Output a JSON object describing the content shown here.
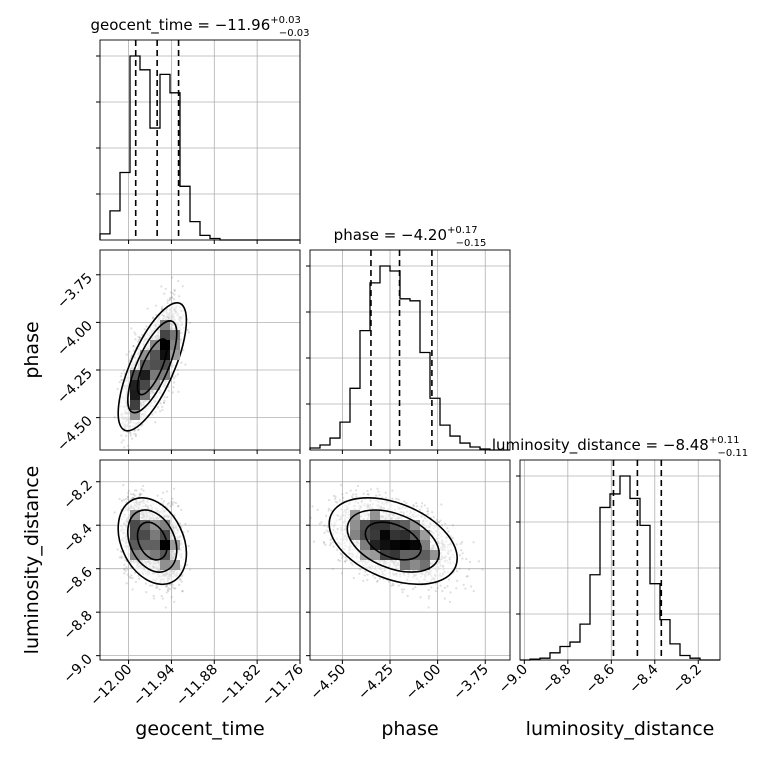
{
  "chart_data": {
    "type": "corner",
    "parameters": [
      "geocent_time",
      "phase",
      "luminosity_distance"
    ],
    "titles": [
      {
        "name": "geocent_time",
        "median": "−11.96",
        "plus": "+0.03",
        "minus": "−0.03"
      },
      {
        "name": "phase",
        "median": "−4.20",
        "plus": "+0.17",
        "minus": "−0.15"
      },
      {
        "name": "luminosity_distance",
        "median": "−8.48",
        "plus": "+0.11",
        "minus": "−0.11"
      }
    ],
    "ranges": [
      [
        -12.04,
        -11.76
      ],
      [
        -4.67,
        -3.62
      ],
      [
        -9.02,
        -8.1
      ]
    ],
    "ticks": [
      {
        "values": [
          -12.0,
          -11.94,
          -11.88,
          -11.82,
          -11.76
        ],
        "labels": [
          "−12.00",
          "−11.94",
          "−11.88",
          "−11.82",
          "−11.76"
        ]
      },
      {
        "values": [
          -4.5,
          -4.25,
          -4.0,
          -3.75
        ],
        "labels": [
          "−4.50",
          "−4.25",
          "−4.00",
          "−3.75"
        ]
      },
      {
        "values": [
          -9.0,
          -8.8,
          -8.6,
          -8.4,
          -8.2
        ],
        "labels": [
          "−9.0",
          "−8.8",
          "−8.6",
          "−8.4",
          "−8.2"
        ]
      }
    ],
    "quantiles": [
      [
        -11.99,
        -11.96,
        -11.93
      ],
      [
        -4.35,
        -4.2,
        -4.03
      ],
      [
        -8.59,
        -8.48,
        -8.37
      ]
    ],
    "histograms": [
      {
        "edges_start": -12.04,
        "bin_width": 0.014,
        "counts": [
          4,
          19,
          44,
          120,
          111,
          73,
          108,
          96,
          35,
          12,
          3,
          1,
          0,
          0,
          0,
          0,
          0,
          0,
          0,
          0
        ]
      },
      {
        "edges_start": -4.67,
        "bin_width": 0.0525,
        "counts": [
          2,
          5,
          12,
          28,
          62,
          120,
          168,
          185,
          180,
          152,
          150,
          98,
          52,
          25,
          14,
          7,
          3,
          1,
          0,
          0
        ]
      },
      {
        "edges_start": -9.02,
        "bin_width": 0.046,
        "counts": [
          0,
          1,
          2,
          8,
          15,
          20,
          40,
          95,
          170,
          185,
          205,
          180,
          150,
          85,
          45,
          18,
          5,
          2,
          0,
          0
        ]
      }
    ],
    "grid": true,
    "contour_levels": [
      0.39,
      0.86,
      0.99
    ]
  }
}
